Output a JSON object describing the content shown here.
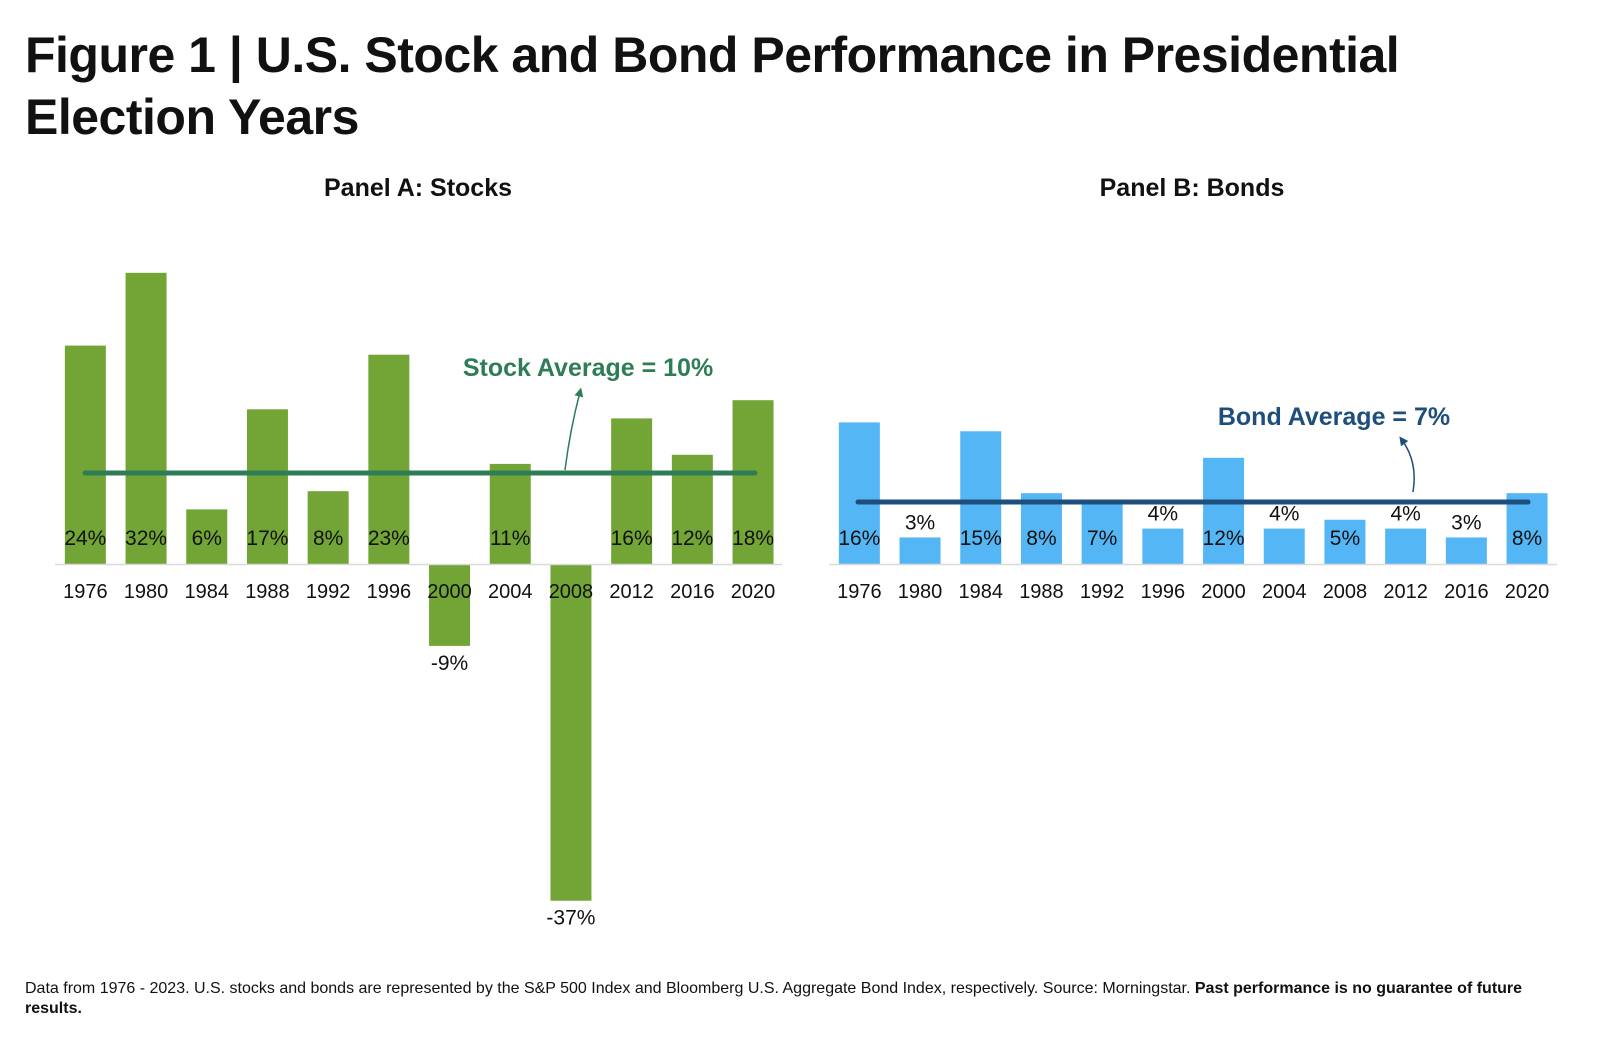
{
  "figure": {
    "title": "Figure 1 | U.S. Stock and Bond Performance in Presidential Election Years"
  },
  "footnote": {
    "text": "Data from 1976 - 2023. U.S. stocks and bonds are represented by the S&P 500 Index and Bloomberg U.S. Aggregate Bond Index, respectively. Source: Morningstar.",
    "bold": "Past performance is no guarantee of future results."
  },
  "chart_data": [
    {
      "type": "bar",
      "title": "Panel A: Stocks",
      "categories": [
        "1976",
        "1980",
        "1984",
        "1988",
        "1992",
        "1996",
        "2000",
        "2004",
        "2008",
        "2012",
        "2016",
        "2020"
      ],
      "values": [
        24,
        32,
        6,
        17,
        8,
        23,
        -9,
        11,
        -37,
        16,
        12,
        18
      ],
      "value_labels": [
        "24%",
        "32%",
        "6%",
        "17%",
        "8%",
        "23%",
        "-9%",
        "11%",
        "-37%",
        "16%",
        "12%",
        "18%"
      ],
      "average": 10,
      "average_label": "Stock Average = 10%",
      "bar_color": "#72a535",
      "average_color": "#2e7d57",
      "grid": false
    },
    {
      "type": "bar",
      "title": "Panel B: Bonds",
      "categories": [
        "1976",
        "1980",
        "1984",
        "1988",
        "1992",
        "1996",
        "2000",
        "2004",
        "2008",
        "2012",
        "2016",
        "2020"
      ],
      "values": [
        16,
        3,
        15,
        8,
        7,
        4,
        12,
        4,
        5,
        4,
        3,
        8
      ],
      "value_labels": [
        "16%",
        "3%",
        "15%",
        "8%",
        "7%",
        "4%",
        "12%",
        "4%",
        "5%",
        "4%",
        "3%",
        "8%"
      ],
      "average": 7,
      "average_label": "Bond Average = 7%",
      "bar_color": "#55b6f5",
      "average_color": "#1e4e7c",
      "grid": false
    }
  ]
}
